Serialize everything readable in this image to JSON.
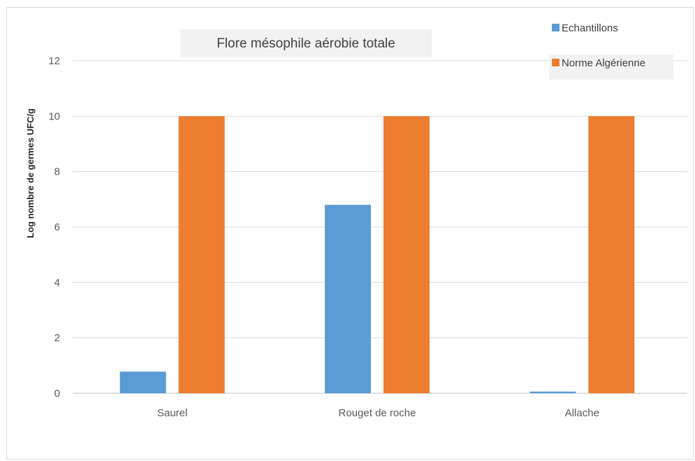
{
  "chart_data": {
    "type": "bar",
    "title": "Flore mésophile aérobie totale",
    "xlabel": "",
    "ylabel": "Log nombre de germes UFC/g",
    "categories": [
      "Saurel",
      "Rouget de roche",
      "Allache"
    ],
    "series": [
      {
        "name": "Echantillons",
        "values": [
          0.78,
          6.8,
          0.06
        ]
      },
      {
        "name": "Norme Algérienne",
        "values": [
          10,
          10,
          10
        ]
      }
    ],
    "ylim": [
      0,
      12
    ],
    "yticks": [
      0,
      2,
      4,
      6,
      8,
      10,
      12
    ],
    "grid": true,
    "legend_position": "top-right",
    "colors": {
      "Echantillons": "#5b9bd5",
      "Norme Algérienne": "#ed7d31",
      "grid": "#d9d9d9",
      "axis": "#bfbfbf"
    }
  }
}
